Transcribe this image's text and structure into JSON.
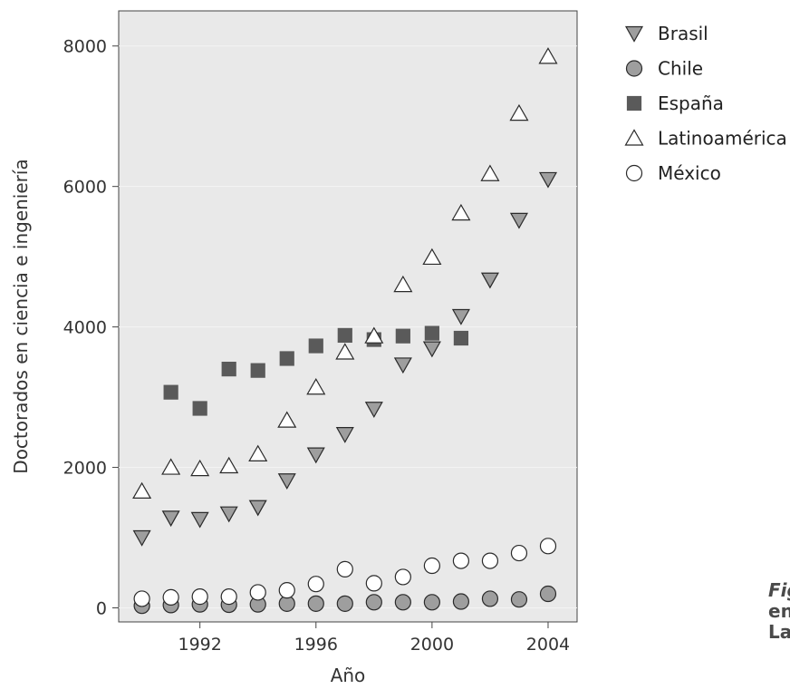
{
  "chart_data": {
    "type": "scatter",
    "xlabel": "Año",
    "ylabel": "Doctorados en ciencia e ingeniería",
    "xlim": [
      1989.2,
      2005.0
    ],
    "ylim": [
      -200,
      8500
    ],
    "x_ticks": [
      1992,
      1996,
      2000,
      2004
    ],
    "y_ticks": [
      0,
      2000,
      4000,
      6000,
      8000
    ],
    "grid": true,
    "legend_position": "right",
    "series": [
      {
        "name": "Brasil",
        "marker": "triangle-down",
        "color": "#9e9e9e",
        "x": [
          1990,
          1991,
          1992,
          1993,
          1994,
          1995,
          1996,
          1997,
          1998,
          1999,
          2000,
          2001,
          2002,
          2003,
          2004
        ],
        "y": [
          1000,
          1280,
          1260,
          1340,
          1430,
          1810,
          2180,
          2470,
          2830,
          3460,
          3690,
          4150,
          4670,
          5520,
          6100
        ]
      },
      {
        "name": "Chile",
        "marker": "circle-filled",
        "color": "#9e9e9e",
        "x": [
          1990,
          1991,
          1992,
          1993,
          1994,
          1995,
          1996,
          1997,
          1998,
          1999,
          2000,
          2001,
          2002,
          2003,
          2004
        ],
        "y": [
          30,
          40,
          50,
          45,
          50,
          60,
          60,
          60,
          80,
          80,
          80,
          90,
          130,
          120,
          200
        ]
      },
      {
        "name": "España",
        "marker": "square",
        "color": "#5a5a5a",
        "x": [
          1991,
          1992,
          1993,
          1994,
          1995,
          1996,
          1997,
          1998,
          1999,
          2000,
          2001
        ],
        "y": [
          3070,
          2840,
          3400,
          3380,
          3550,
          3730,
          3880,
          3820,
          3870,
          3910,
          3840
        ]
      },
      {
        "name": "Latinoamérica",
        "marker": "triangle-up-open",
        "color": "#ffffff",
        "x": [
          1990,
          1991,
          1992,
          1993,
          1994,
          1995,
          1996,
          1997,
          1998,
          1999,
          2000,
          2001,
          2002,
          2003,
          2004
        ],
        "y": [
          1660,
          2000,
          1980,
          2020,
          2190,
          2670,
          3140,
          3640,
          3870,
          4600,
          4990,
          5620,
          6180,
          7040,
          7850
        ]
      },
      {
        "name": "México",
        "marker": "circle-open",
        "color": "#ffffff",
        "x": [
          1990,
          1991,
          1992,
          1993,
          1994,
          1995,
          1996,
          1997,
          1998,
          1999,
          2000,
          2001,
          2002,
          2003,
          2004
        ],
        "y": [
          130,
          150,
          160,
          160,
          220,
          250,
          340,
          550,
          350,
          440,
          600,
          670,
          670,
          780,
          880
        ]
      }
    ]
  },
  "caption": {
    "lines": [
      "Fig",
      "en",
      "La"
    ]
  }
}
